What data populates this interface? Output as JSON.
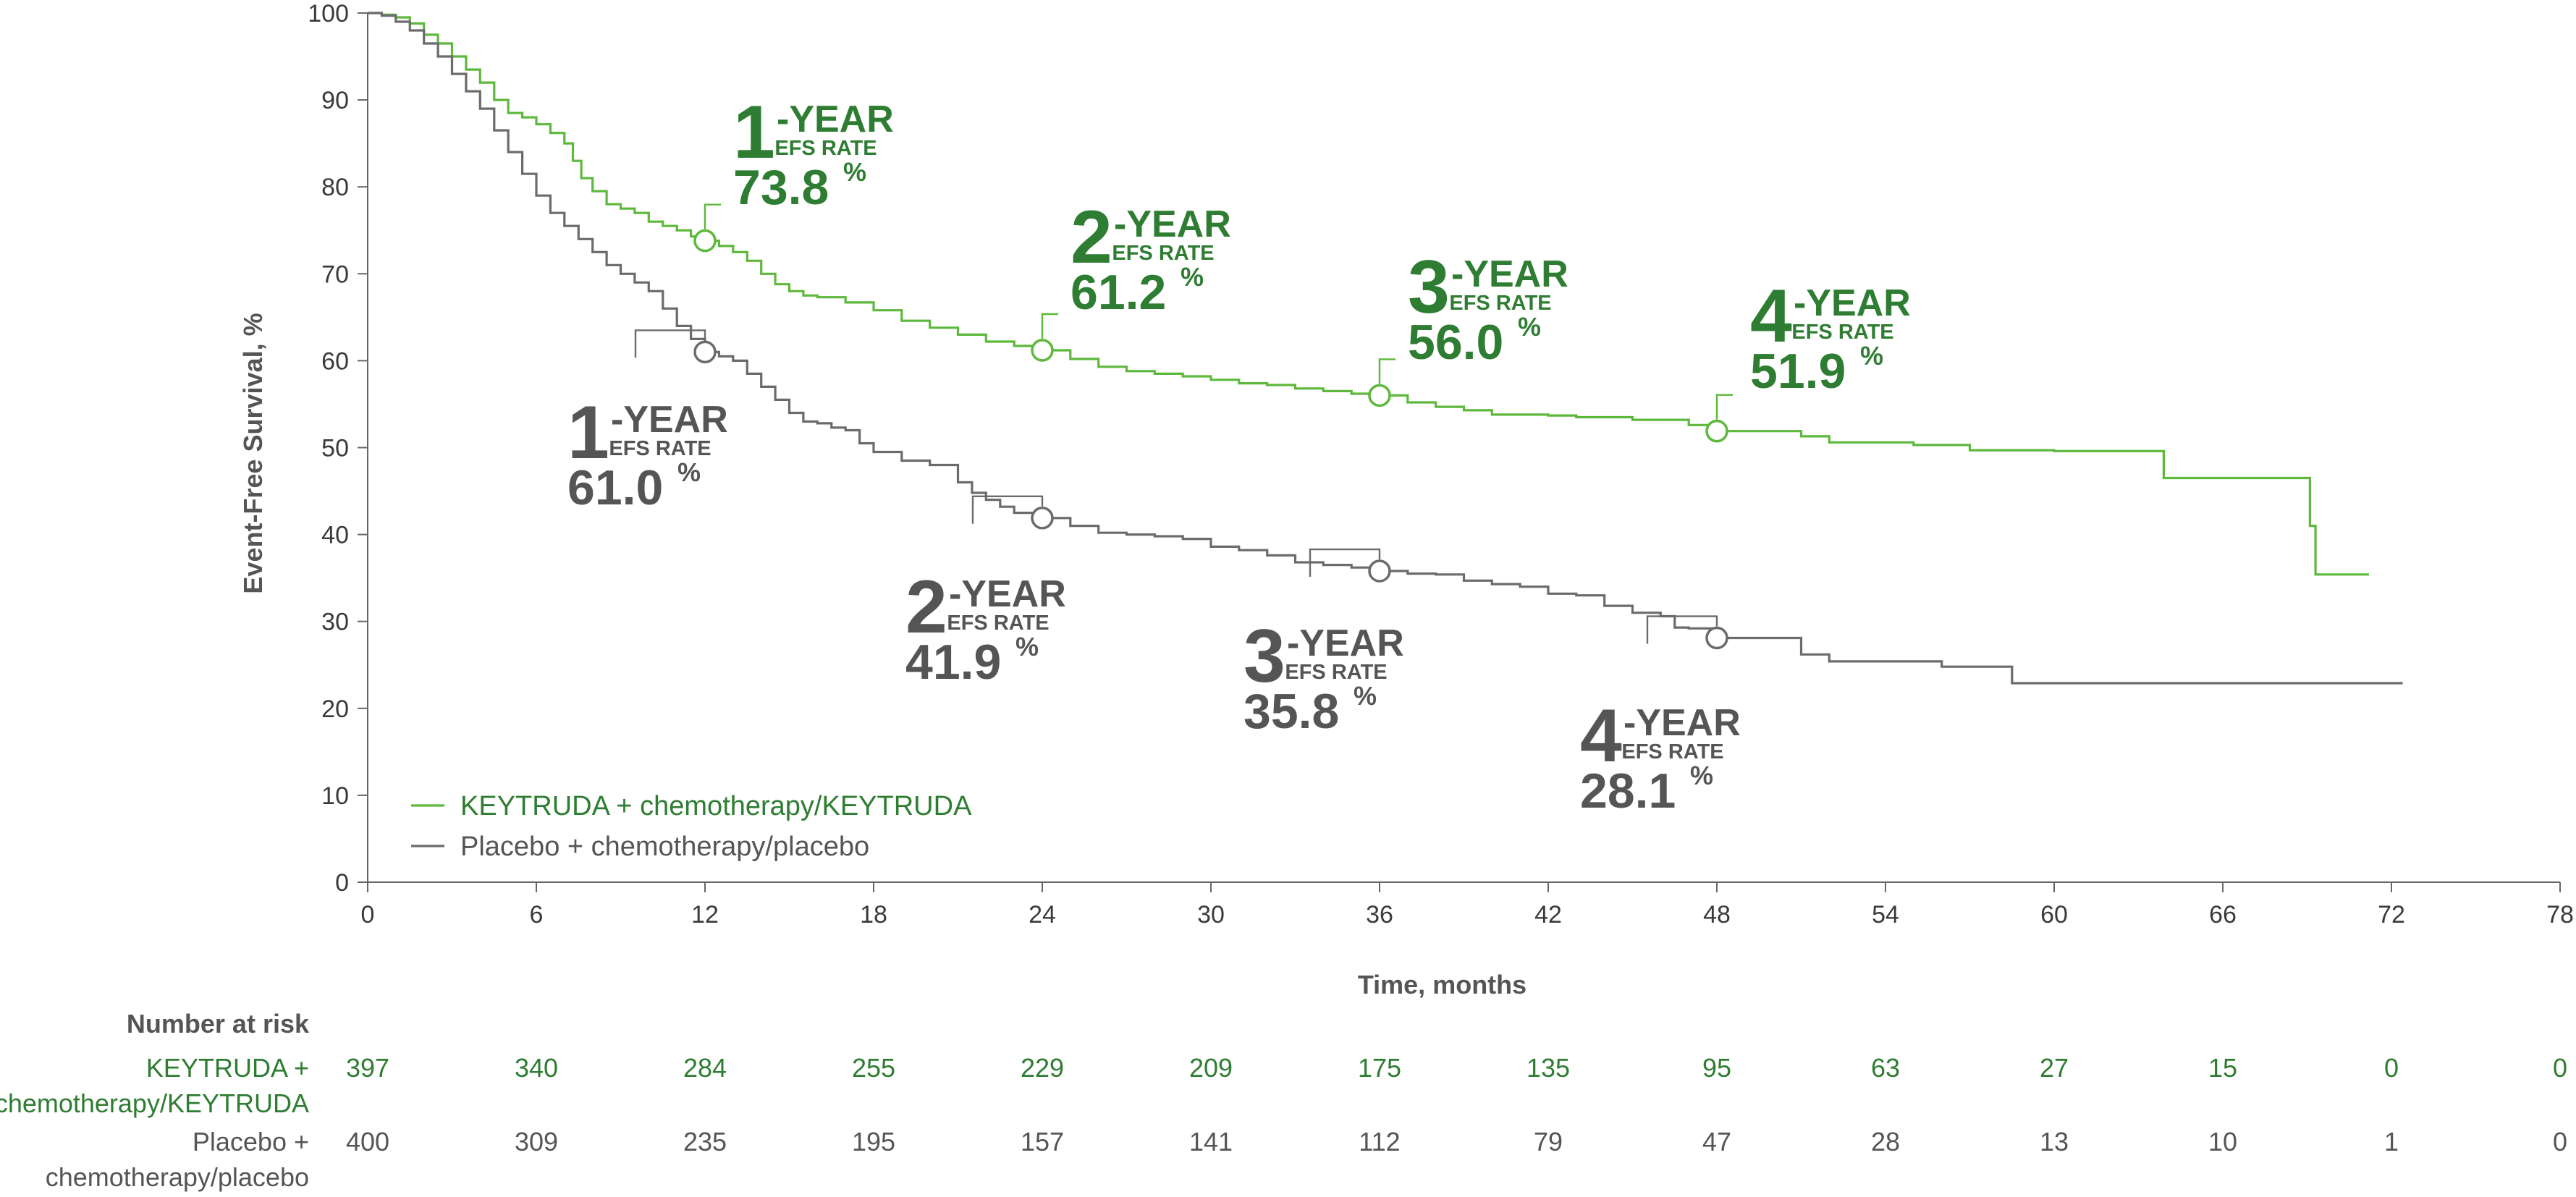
{
  "colors": {
    "keytruda": "#5DB83B",
    "keytruda_text": "#2E7D32",
    "placebo": "#6B6B6B",
    "placebo_text": "#555555",
    "axis": "#666666"
  },
  "chart_data": {
    "type": "line",
    "subtype": "kaplan-meier step curve",
    "xlabel": "Time, months",
    "ylabel": "Event-Free Survival, %",
    "xlim": [
      0,
      78
    ],
    "ylim": [
      0,
      100
    ],
    "xticks": [
      "0",
      "6",
      "12",
      "18",
      "24",
      "30",
      "36",
      "42",
      "48",
      "54",
      "60",
      "66",
      "72",
      "78"
    ],
    "yticks": [
      "0",
      "10",
      "20",
      "30",
      "40",
      "50",
      "60",
      "70",
      "80",
      "90",
      "100"
    ],
    "grid": false,
    "legend_position": "bottom-left",
    "series": [
      {
        "name": "KEYTRUDA + chemotherapy/KEYTRUDA",
        "color_key": "keytruda",
        "points": [
          [
            0,
            100
          ],
          [
            0.5,
            99.8
          ],
          [
            1,
            99.5
          ],
          [
            1.5,
            98.8
          ],
          [
            2,
            97.5
          ],
          [
            2.5,
            96.5
          ],
          [
            3,
            95
          ],
          [
            3.5,
            93.5
          ],
          [
            4,
            92
          ],
          [
            4.5,
            90
          ],
          [
            5,
            88.5
          ],
          [
            5.5,
            88
          ],
          [
            6,
            87.2
          ],
          [
            6.5,
            86.2
          ],
          [
            7,
            85
          ],
          [
            7.3,
            83
          ],
          [
            7.6,
            81
          ],
          [
            8,
            79.5
          ],
          [
            8.5,
            78
          ],
          [
            9,
            77.5
          ],
          [
            9.5,
            77
          ],
          [
            10,
            76
          ],
          [
            10.5,
            75.5
          ],
          [
            11,
            75
          ],
          [
            11.5,
            74.3
          ],
          [
            12,
            73.8
          ],
          [
            12.5,
            73.2
          ],
          [
            13,
            72.5
          ],
          [
            13.5,
            71.5
          ],
          [
            14,
            70
          ],
          [
            14.5,
            68.8
          ],
          [
            15,
            68
          ],
          [
            15.5,
            67.5
          ],
          [
            16,
            67.3
          ],
          [
            17,
            66.7
          ],
          [
            18,
            65.8
          ],
          [
            19,
            64.6
          ],
          [
            20,
            63.8
          ],
          [
            21,
            63
          ],
          [
            22,
            62.2
          ],
          [
            23,
            61.7
          ],
          [
            24,
            61.2
          ],
          [
            25,
            60.2
          ],
          [
            26,
            59.3
          ],
          [
            27,
            58.8
          ],
          [
            28,
            58.5
          ],
          [
            29,
            58.2
          ],
          [
            30,
            57.8
          ],
          [
            31,
            57.4
          ],
          [
            32,
            57.2
          ],
          [
            33,
            56.8
          ],
          [
            34,
            56.5
          ],
          [
            35,
            56.2
          ],
          [
            36,
            56
          ],
          [
            37,
            55.2
          ],
          [
            38,
            54.7
          ],
          [
            39,
            54.3
          ],
          [
            40,
            53.8
          ],
          [
            42,
            53.7
          ],
          [
            43,
            53.5
          ],
          [
            45,
            53.2
          ],
          [
            47,
            52.6
          ],
          [
            48,
            51.9
          ],
          [
            51,
            51.3
          ],
          [
            52,
            50.6
          ],
          [
            55,
            50.3
          ],
          [
            57,
            49.7
          ],
          [
            60,
            49.6
          ],
          [
            63,
            49.6
          ],
          [
            63.9,
            46.5
          ],
          [
            69,
            46.5
          ],
          [
            69.1,
            41
          ],
          [
            69.3,
            35.4
          ],
          [
            71.2,
            35.4
          ]
        ]
      },
      {
        "name": "Placebo + chemotherapy/placebo",
        "color_key": "placebo",
        "points": [
          [
            0,
            100
          ],
          [
            0.5,
            99.7
          ],
          [
            1,
            99
          ],
          [
            1.5,
            98
          ],
          [
            2,
            96.5
          ],
          [
            2.5,
            95
          ],
          [
            3,
            93
          ],
          [
            3.5,
            91
          ],
          [
            4,
            89
          ],
          [
            4.5,
            86.5
          ],
          [
            5,
            84
          ],
          [
            5.5,
            81.5
          ],
          [
            6,
            79
          ],
          [
            6.5,
            77
          ],
          [
            7,
            75.5
          ],
          [
            7.5,
            74
          ],
          [
            8,
            72.5
          ],
          [
            8.5,
            71
          ],
          [
            9,
            70
          ],
          [
            9.5,
            69
          ],
          [
            10,
            68
          ],
          [
            10.5,
            66
          ],
          [
            11,
            64
          ],
          [
            11.5,
            62.5
          ],
          [
            12,
            61
          ],
          [
            12.5,
            60.5
          ],
          [
            13,
            60
          ],
          [
            13.5,
            58.5
          ],
          [
            14,
            57
          ],
          [
            14.5,
            55.5
          ],
          [
            15,
            54
          ],
          [
            15.5,
            53
          ],
          [
            16,
            52.8
          ],
          [
            16.5,
            52.3
          ],
          [
            17,
            52
          ],
          [
            17.5,
            50.5
          ],
          [
            18,
            49.5
          ],
          [
            19,
            48.5
          ],
          [
            20,
            48
          ],
          [
            21,
            46
          ],
          [
            21.5,
            44.8
          ],
          [
            22,
            44
          ],
          [
            22.5,
            43.2
          ],
          [
            23,
            42.5
          ],
          [
            24,
            41.9
          ],
          [
            25,
            41
          ],
          [
            26,
            40.2
          ],
          [
            27,
            40
          ],
          [
            28,
            39.8
          ],
          [
            29,
            39.5
          ],
          [
            30,
            38.6
          ],
          [
            31,
            38.2
          ],
          [
            32,
            37.6
          ],
          [
            33,
            36.8
          ],
          [
            34,
            36.5
          ],
          [
            35,
            36.2
          ],
          [
            36,
            35.8
          ],
          [
            37,
            35.5
          ],
          [
            38,
            35.4
          ],
          [
            39,
            34.7
          ],
          [
            40,
            34.3
          ],
          [
            41,
            34
          ],
          [
            42,
            33.2
          ],
          [
            43,
            33
          ],
          [
            44,
            31.8
          ],
          [
            45,
            31
          ],
          [
            46,
            30.6
          ],
          [
            46.5,
            29.3
          ],
          [
            47,
            29.2
          ],
          [
            48,
            28.1
          ],
          [
            50,
            28.1
          ],
          [
            51,
            26.2
          ],
          [
            52,
            25.4
          ],
          [
            54,
            25.4
          ],
          [
            56,
            24.8
          ],
          [
            58,
            24.8
          ],
          [
            58.5,
            22.9
          ],
          [
            60,
            22.9
          ],
          [
            65,
            22.9
          ],
          [
            70,
            22.9
          ],
          [
            72.4,
            22.9
          ]
        ]
      }
    ],
    "annotations": [
      {
        "series": "keytruda",
        "x": 12,
        "y": 73.8,
        "num": "1",
        "year_label": "-YEAR",
        "efs_label": "EFS RATE",
        "value": "73.8",
        "pct": "%"
      },
      {
        "series": "keytruda",
        "x": 24,
        "y": 61.2,
        "num": "2",
        "year_label": "-YEAR",
        "efs_label": "EFS RATE",
        "value": "61.2",
        "pct": "%"
      },
      {
        "series": "keytruda",
        "x": 36,
        "y": 56.0,
        "num": "3",
        "year_label": "-YEAR",
        "efs_label": "EFS RATE",
        "value": "56.0",
        "pct": "%"
      },
      {
        "series": "keytruda",
        "x": 48,
        "y": 51.9,
        "num": "4",
        "year_label": "-YEAR",
        "efs_label": "EFS RATE",
        "value": "51.9",
        "pct": "%"
      },
      {
        "series": "placebo",
        "x": 12,
        "y": 61.0,
        "num": "1",
        "year_label": "-YEAR",
        "efs_label": "EFS RATE",
        "value": "61.0",
        "pct": "%"
      },
      {
        "series": "placebo",
        "x": 24,
        "y": 41.9,
        "num": "2",
        "year_label": "-YEAR",
        "efs_label": "EFS RATE",
        "value": "41.9",
        "pct": "%"
      },
      {
        "series": "placebo",
        "x": 36,
        "y": 35.8,
        "num": "3",
        "year_label": "-YEAR",
        "efs_label": "EFS RATE",
        "value": "35.8",
        "pct": "%"
      },
      {
        "series": "placebo",
        "x": 48,
        "y": 28.1,
        "num": "4",
        "year_label": "-YEAR",
        "efs_label": "EFS RATE",
        "value": "28.1",
        "pct": "%"
      }
    ],
    "risk_table": {
      "title": "Number at risk",
      "rows": [
        {
          "label": [
            "KEYTRUDA +",
            "chemotherapy/KEYTRUDA"
          ],
          "color_key": "keytruda_text",
          "values": [
            "397",
            "340",
            "284",
            "255",
            "229",
            "209",
            "175",
            "135",
            "95",
            "63",
            "27",
            "15",
            "0",
            "0"
          ]
        },
        {
          "label": [
            "Placebo +",
            "chemotherapy/placebo"
          ],
          "color_key": "placebo_text",
          "values": [
            "400",
            "309",
            "235",
            "195",
            "157",
            "141",
            "112",
            "79",
            "47",
            "28",
            "13",
            "10",
            "1",
            "0"
          ]
        }
      ]
    }
  }
}
